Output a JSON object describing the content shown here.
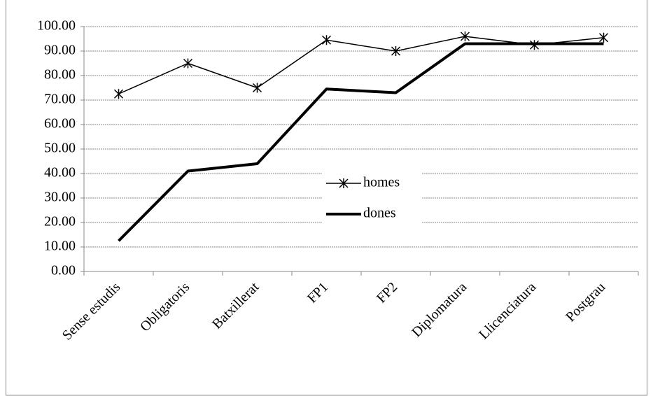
{
  "chart_data": {
    "type": "line",
    "categories": [
      "Sense estudis",
      "Obligatoris",
      "Batxillerat",
      "FP1",
      "FP2",
      "Diplomatura",
      "Llicenciatura",
      "Postgrau"
    ],
    "series": [
      {
        "name": "homes",
        "color": "#000000",
        "marker": "asterisk",
        "values": [
          72.5,
          85,
          75,
          94.5,
          90,
          96,
          92.5,
          95.5
        ]
      },
      {
        "name": "dones",
        "color": "#000000",
        "values": [
          12.5,
          41,
          44,
          74.5,
          73,
          93,
          93,
          93
        ]
      }
    ],
    "ylim": [
      0,
      100
    ],
    "yticks": [
      {
        "value": 0,
        "label": "0.00"
      },
      {
        "value": 10,
        "label": "10.00"
      },
      {
        "value": 20,
        "label": "20.00"
      },
      {
        "value": 30,
        "label": "30.00"
      },
      {
        "value": 40,
        "label": "40.00"
      },
      {
        "value": 50,
        "label": "50.00"
      },
      {
        "value": 60,
        "label": "60.00"
      },
      {
        "value": 70,
        "label": "70.00"
      },
      {
        "value": 80,
        "label": "80.00"
      },
      {
        "value": 90,
        "label": "90.00"
      },
      {
        "value": 100,
        "label": "100.00"
      }
    ],
    "grid": true
  }
}
